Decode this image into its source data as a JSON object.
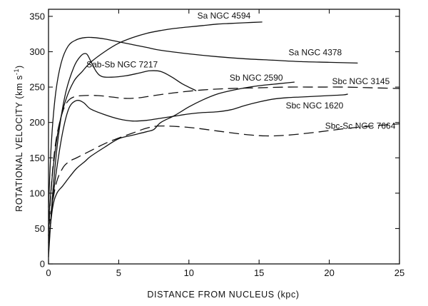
{
  "chart_data": {
    "type": "line",
    "title": "",
    "xlabel": "DISTANCE  FROM  NUCLEUS (kpc)",
    "ylabel": "ROTATIONAL  VELOCITY  (km s",
    "ylabel_sup": "-1",
    "ylabel_close": ")",
    "xlim": [
      0,
      25
    ],
    "ylim": [
      0,
      360
    ],
    "xticks": [
      0,
      5,
      10,
      15,
      20,
      25
    ],
    "xtick_labels": [
      "0",
      "5",
      "10",
      "15",
      "20",
      "25"
    ],
    "yticks": [
      0,
      50,
      100,
      150,
      200,
      250,
      300,
      350
    ],
    "ytick_labels": [
      "0",
      "50",
      "100",
      "150",
      "200",
      "250",
      "300",
      "350"
    ],
    "grid": false,
    "series": [
      {
        "name": "Sa  NGC 4594",
        "dashed": false,
        "x": [
          0,
          0.3,
          0.7,
          1.2,
          1.8,
          2.4,
          3.0,
          4.0,
          5.0,
          6.0,
          7.0,
          8.0,
          9.0,
          10.0,
          11.0,
          12.0,
          13.0,
          14.0,
          15.2
        ],
        "y": [
          60,
          130,
          190,
          230,
          258,
          272,
          285,
          300,
          312,
          320,
          326,
          330,
          333,
          335,
          337,
          339,
          340,
          341,
          342
        ]
      },
      {
        "name": "Sa  NGC 4378",
        "dashed": false,
        "x": [
          0,
          0.2,
          0.5,
          0.9,
          1.4,
          2.0,
          2.6,
          3.2,
          4.0,
          5.0,
          6.0,
          7.0,
          8.0,
          10.0,
          12.0,
          14.0,
          16.0,
          18.0,
          20.0,
          22.0
        ],
        "y": [
          80,
          170,
          240,
          284,
          308,
          317,
          320,
          320,
          318,
          314,
          310,
          306,
          302,
          297,
          293,
          290,
          288,
          286,
          285,
          284
        ]
      },
      {
        "name": "Sab-Sb  NGC 7217",
        "dashed": false,
        "x": [
          0,
          0.3,
          0.7,
          1.2,
          1.8,
          2.3,
          2.7,
          3.0,
          3.4,
          3.8,
          4.5,
          5.5,
          6.5,
          7.2,
          8.0,
          8.8,
          9.5,
          10.5
        ],
        "y": [
          10,
          100,
          180,
          240,
          278,
          294,
          297,
          287,
          272,
          265,
          264,
          266,
          270,
          273,
          272,
          264,
          255,
          245
        ]
      },
      {
        "name": "Sb  NGC 2590",
        "dashed": false,
        "x": [
          0,
          0.3,
          0.6,
          1.0,
          1.5,
          2.0,
          2.6,
          3.0,
          4.0,
          5.0,
          6.0,
          7.0,
          7.5,
          8.0,
          9.0,
          10.0,
          11.0,
          12.0,
          13.0,
          14.0,
          15.0,
          16.0,
          17.0,
          17.5
        ],
        "y": [
          30,
          80,
          100,
          110,
          123,
          135,
          145,
          152,
          165,
          177,
          182,
          187,
          190,
          200,
          210,
          222,
          232,
          240,
          245,
          249,
          252,
          254,
          256,
          257
        ]
      },
      {
        "name": "Sbc  NGC 3145",
        "dashed": true,
        "x": [
          0,
          0.2,
          0.5,
          0.9,
          1.3,
          1.8,
          2.5,
          3.5,
          4.5,
          5.5,
          6.5,
          7.5,
          9.0,
          11.0,
          13.0,
          15.0,
          17.0,
          19.0,
          21.0,
          23.0,
          25.0
        ],
        "y": [
          40,
          110,
          170,
          208,
          228,
          236,
          238,
          238,
          236,
          234,
          235,
          238,
          242,
          246,
          248,
          249,
          250,
          250,
          250,
          249,
          248
        ]
      },
      {
        "name": "Sbc  NGC 1620",
        "dashed": false,
        "x": [
          0,
          0.3,
          0.7,
          1.1,
          1.5,
          2.0,
          2.5,
          3.0,
          4.0,
          5.0,
          6.0,
          7.0,
          8.0,
          9.0,
          10.0,
          11.0,
          12.0,
          13.0,
          14.0,
          15.0,
          16.0,
          17.0,
          18.0,
          19.0,
          20.0,
          21.0,
          21.3
        ],
        "y": [
          20,
          90,
          150,
          195,
          222,
          231,
          228,
          219,
          211,
          205,
          202,
          203,
          206,
          209,
          212,
          214,
          215,
          218,
          224,
          229,
          233,
          235,
          236,
          237,
          238,
          239,
          240
        ]
      },
      {
        "name": "Sbc-Sc NGC 7664",
        "dashed": true,
        "x": [
          0,
          0.5,
          1.0,
          1.5,
          2.0,
          3.0,
          4.0,
          5.0,
          6.0,
          7.0,
          8.0,
          10.0,
          12.0,
          14.0,
          15.5,
          17.0,
          19.0,
          21.0,
          23.0,
          25.0
        ],
        "y": [
          50,
          110,
          135,
          145,
          150,
          160,
          170,
          178,
          185,
          192,
          195,
          193,
          188,
          183,
          181,
          182,
          186,
          191,
          195,
          198
        ]
      }
    ],
    "annotations": [
      {
        "text": "Sa  NGC 4594",
        "x": 10.6,
        "y": 347
      },
      {
        "text": "Sa  NGC 4378",
        "x": 17.1,
        "y": 295
      },
      {
        "text": "Sab-Sb  NGC 7217",
        "x": 2.7,
        "y": 278
      },
      {
        "text": "Sb  NGC 2590",
        "x": 12.9,
        "y": 259
      },
      {
        "text": "Sbc  NGC 3145",
        "x": 20.2,
        "y": 254
      },
      {
        "text": "Sbc  NGC 1620",
        "x": 16.9,
        "y": 220
      },
      {
        "text": "Sbc-Sc NGC 7664",
        "x": 19.7,
        "y": 191
      }
    ]
  }
}
